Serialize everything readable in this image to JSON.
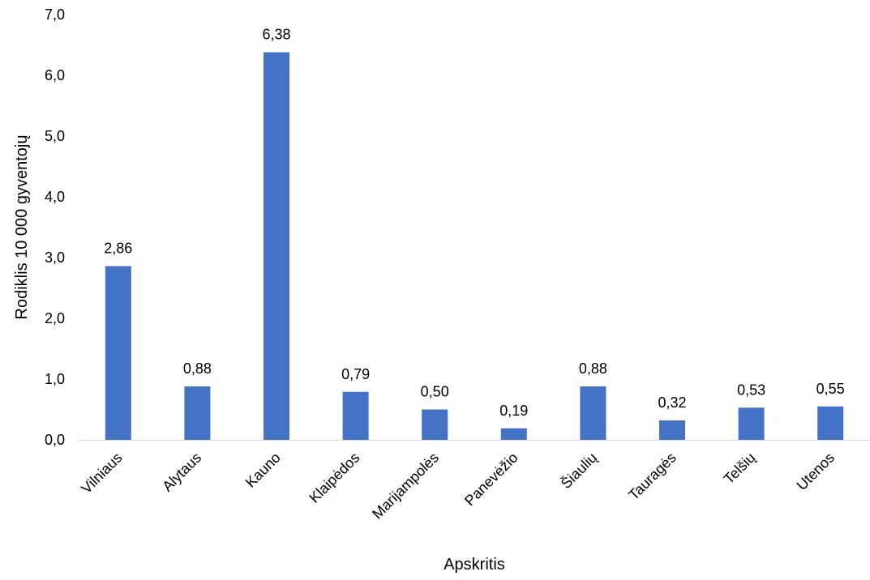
{
  "chart_data": {
    "type": "bar",
    "title": "",
    "xlabel": "Apskritis",
    "ylabel": "Rodiklis 10 000 gyventojų",
    "ylim": [
      0,
      7
    ],
    "yticks": [
      "0,0",
      "1,0",
      "2,0",
      "3,0",
      "4,0",
      "5,0",
      "6,0",
      "7,0"
    ],
    "categories": [
      "Vilniaus",
      "Alytaus",
      "Kauno",
      "Klaipėdos",
      "Marijampolės",
      "Panevėžio",
      "Šiaulių",
      "Tauragės",
      "Telšių",
      "Utenos"
    ],
    "values": [
      2.86,
      0.88,
      6.38,
      0.79,
      0.5,
      0.19,
      0.88,
      0.32,
      0.53,
      0.55
    ],
    "data_labels": [
      "2,86",
      "0,88",
      "6,38",
      "0,79",
      "0,50",
      "0,19",
      "0,88",
      "0,32",
      "0,53",
      "0,55"
    ],
    "grid": false,
    "legend": "none",
    "colors": {
      "bar": "#4472c4",
      "axis": "#d9d9d9",
      "text": "#000000"
    }
  }
}
